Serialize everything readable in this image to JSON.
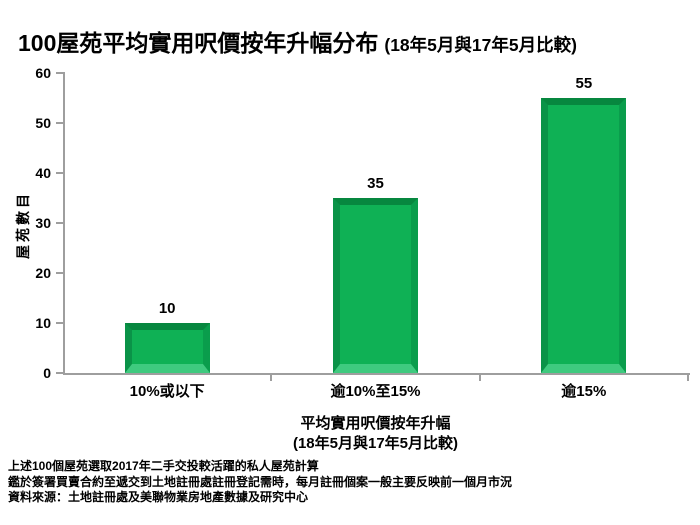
{
  "title": {
    "main": "100屋苑平均實用呎價按年升幅分布",
    "paren": "(18年5月與17年5月比較)"
  },
  "chart_data": {
    "type": "bar",
    "title": "100屋苑平均實用呎價按年升幅分布 (18年5月與17年5月比較)",
    "categories": [
      "10%或以下",
      "逾10%至15%",
      "逾15%"
    ],
    "values": [
      10,
      35,
      55
    ],
    "ylabel": "屋苑數目",
    "xlabel_line1": "平均實用呎價按年升幅",
    "xlabel_line2": "(18年5月與17年5月比較)",
    "ylim": [
      0,
      60
    ],
    "yticks": [
      0,
      10,
      20,
      30,
      40,
      50,
      60
    ],
    "grid": false,
    "legend": false,
    "bar_color": "#0FB155",
    "bar_bevel_top": "#07873F",
    "bar_bevel_left": "#0A9348",
    "bar_bevel_right": "#0A9D4C",
    "bar_bevel_bottom": "#3FCA7F",
    "axis_color": "#9E9E9E"
  },
  "footnotes": {
    "line1": "上述100個屋苑選取2017年二手交投較活躍的私人屋苑計算",
    "line2": "鑑於簽署買賣合約至遞交到土地註冊處註冊登記需時，每月註冊個案一般主要反映前一個月市況",
    "line3": "資料來源：土地註冊處及美聯物業房地產數據及研究中心"
  }
}
